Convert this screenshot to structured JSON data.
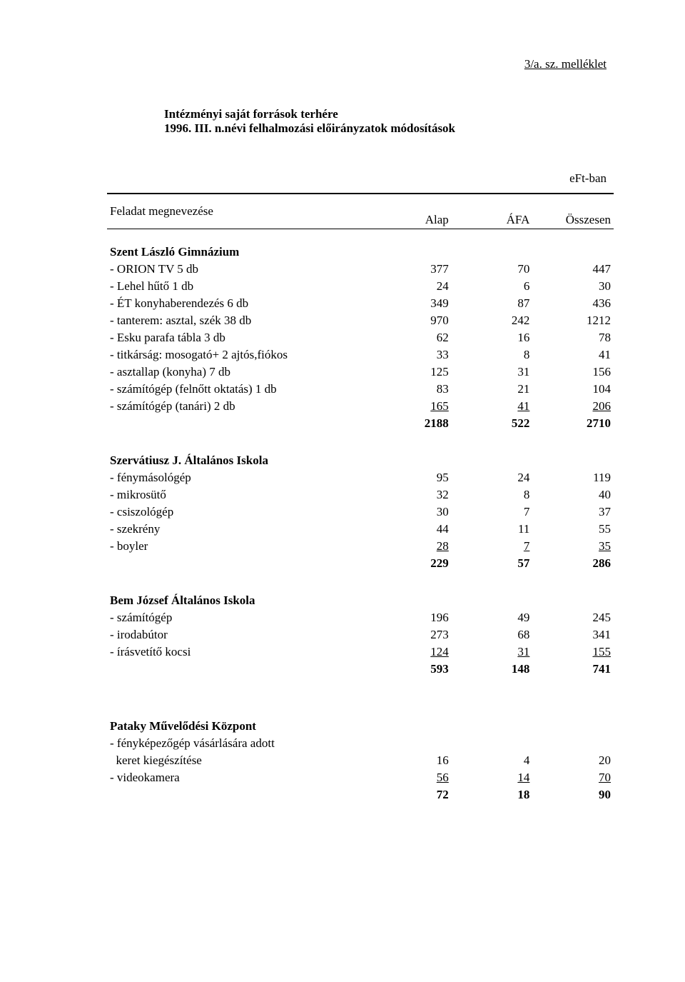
{
  "attachment": "3/a. sz. melléklet",
  "title_line1": "Intézményi saját források terhére",
  "title_line2": "1996. III. n.névi felhalmozási előirányzatok módosítások",
  "unit": "eFt-ban",
  "columns": {
    "c1": "Feladat megnevezése",
    "c2": "Alap",
    "c3": "ÁFA",
    "c4": "Összesen"
  },
  "sections": [
    {
      "name": "Szent László Gimnázium",
      "rows": [
        {
          "label": "- ORION TV 5 db",
          "alap": "377",
          "afa": "70",
          "ossz": "447"
        },
        {
          "label": "- Lehel hűtő 1 db",
          "alap": "24",
          "afa": "6",
          "ossz": "30"
        },
        {
          "label": "- ÉT konyhaberendezés 6 db",
          "alap": "349",
          "afa": "87",
          "ossz": "436"
        },
        {
          "label": "- tanterem: asztal, szék 38 db",
          "alap": "970",
          "afa": "242",
          "ossz": "1212"
        },
        {
          "label": "- Esku parafa tábla 3 db",
          "alap": "62",
          "afa": "16",
          "ossz": "78"
        },
        {
          "label": "- titkárság: mosogató+ 2 ajtós,fiókos",
          "alap": "33",
          "afa": "8",
          "ossz": "41"
        },
        {
          "label": "- asztallap (konyha) 7 db",
          "alap": "125",
          "afa": "31",
          "ossz": "156"
        },
        {
          "label": "- számítógép (felnőtt oktatás) 1 db",
          "alap": "83",
          "afa": "21",
          "ossz": "104"
        },
        {
          "label": "- számítógép (tanári) 2 db",
          "alap": "165",
          "afa": "41",
          "ossz": "206",
          "underline": true
        }
      ],
      "subtotal": {
        "alap": "2188",
        "afa": "522",
        "ossz": "2710"
      }
    },
    {
      "name": "Szervátiusz J. Általános Iskola",
      "rows": [
        {
          "label": "- fénymásológép",
          "alap": "95",
          "afa": "24",
          "ossz": "119"
        },
        {
          "label": "- mikrosütő",
          "alap": "32",
          "afa": "8",
          "ossz": "40"
        },
        {
          "label": "- csiszológép",
          "alap": "30",
          "afa": "7",
          "ossz": "37"
        },
        {
          "label": "- szekrény",
          "alap": "44",
          "afa": "11",
          "ossz": "55"
        },
        {
          "label": "- boyler",
          "alap": "28",
          "afa": "7",
          "ossz": "35",
          "underline": true
        }
      ],
      "subtotal": {
        "alap": "229",
        "afa": "57",
        "ossz": "286"
      }
    },
    {
      "name": "Bem József Általános Iskola",
      "rows": [
        {
          "label": "- számítógép",
          "alap": "196",
          "afa": "49",
          "ossz": "245"
        },
        {
          "label": "- irodabútor",
          "alap": "273",
          "afa": "68",
          "ossz": "341"
        },
        {
          "label": "- írásvetítő kocsi",
          "alap": "124",
          "afa": "31",
          "ossz": "155",
          "underline": true
        }
      ],
      "subtotal": {
        "alap": "593",
        "afa": "148",
        "ossz": "741"
      }
    },
    {
      "name": "Pataky Művelődési Központ",
      "rows": [
        {
          "label": "- fényképezőgép vásárlására adott",
          "alap": "",
          "afa": "",
          "ossz": ""
        },
        {
          "label": "  keret kiegészítése",
          "alap": "16",
          "afa": "4",
          "ossz": "20"
        },
        {
          "label": "- videokamera",
          "alap": "56",
          "afa": "14",
          "ossz": "70",
          "underline": true
        }
      ],
      "subtotal": {
        "alap": "72",
        "afa": "18",
        "ossz": "90"
      }
    }
  ]
}
